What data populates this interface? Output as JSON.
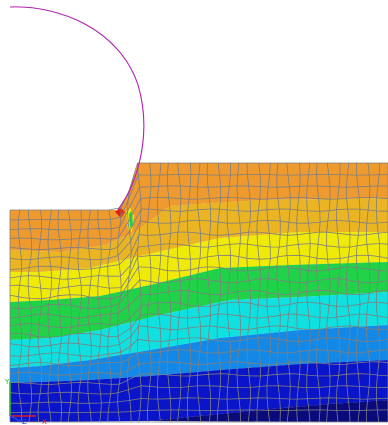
{
  "viewport": {
    "contour_colors": [
      "#ee9a2e",
      "#eab423",
      "#f0ea08",
      "#20d248",
      "#10e0e0",
      "#1488e6",
      "#0a14c8",
      "#0a0a7a"
    ],
    "mesh_color": "#7f7f7f",
    "outline_color": "#b020b0",
    "peak_color": "#e02010",
    "background": "#ffffff"
  },
  "triad": {
    "labels": {
      "y": "Y",
      "x": "X",
      "z": "Z"
    },
    "colors": {
      "y": "#20c020",
      "x": "#e02020",
      "z": "#2040e0"
    }
  }
}
